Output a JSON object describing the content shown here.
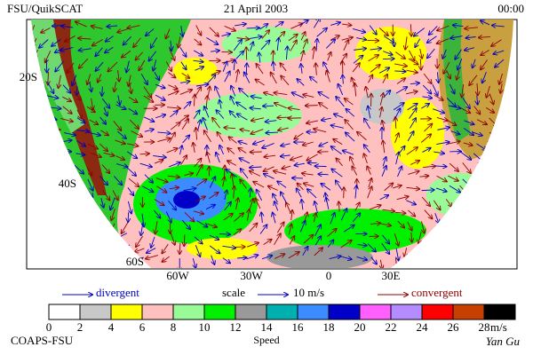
{
  "header": {
    "left": "FSU/QuikSCAT",
    "center": "21 April 2003",
    "right": "00:00"
  },
  "map": {
    "lat_labels": [
      "20S",
      "40S",
      "60S"
    ],
    "lon_labels": [
      "60W",
      "30W",
      "0",
      "30E"
    ]
  },
  "legend": {
    "divergent": "divergent",
    "scale": "scale",
    "scale_value": "10 m/s",
    "convergent": "convergent"
  },
  "colorbar": {
    "ticks": [
      0,
      2,
      4,
      6,
      8,
      10,
      12,
      14,
      16,
      18,
      20,
      22,
      24,
      26,
      28
    ],
    "colors": [
      "#ffffff",
      "#c8c8c8",
      "#ffff00",
      "#ffc0c0",
      "#98fb98",
      "#00f000",
      "#999999",
      "#00b0b0",
      "#3c8cff",
      "#0000c8",
      "#ff60ff",
      "#b48cff",
      "#ff0000",
      "#c84000",
      "#000000"
    ],
    "unit": "m/s",
    "label": "Speed"
  },
  "footer": {
    "left": "COAPS-FSU",
    "right": "Yan Gu"
  }
}
